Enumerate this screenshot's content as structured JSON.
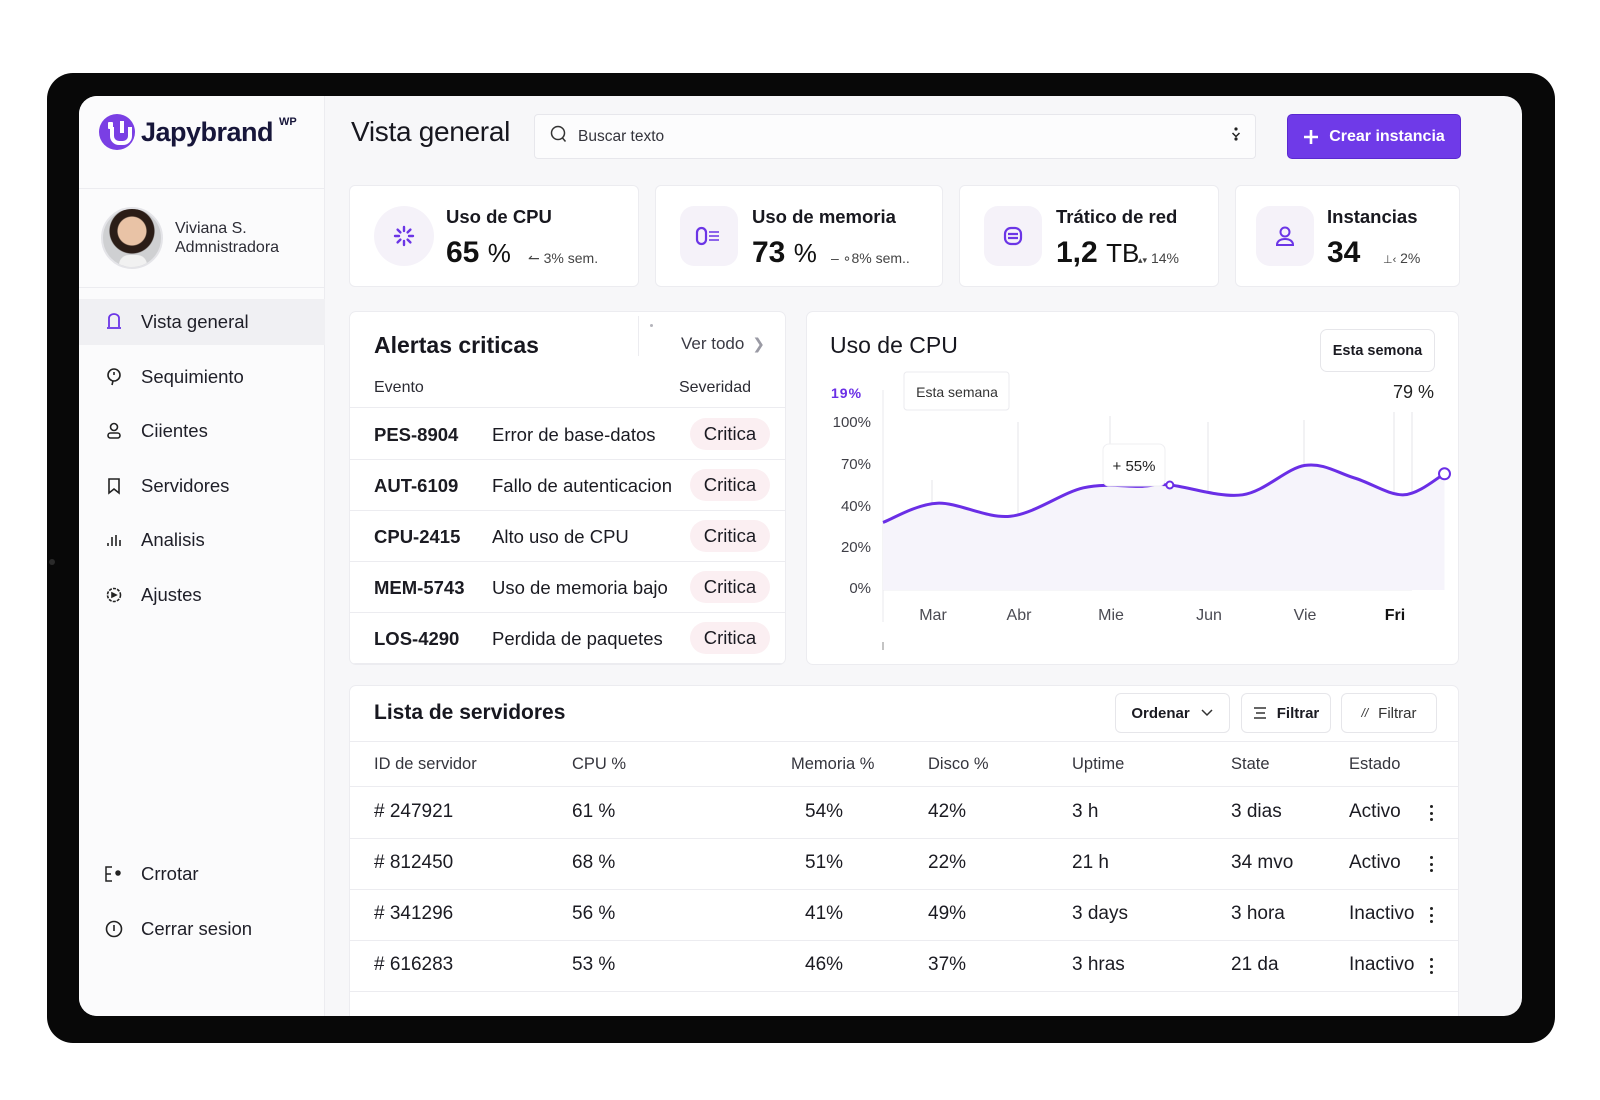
{
  "brand": {
    "name": "Japybrand",
    "superscript": "WP",
    "accent_color": "#6f3ae8"
  },
  "user": {
    "name": "Viviana S.",
    "role": "Admnistradora"
  },
  "sidebar": {
    "items": [
      {
        "label": "Vista general",
        "icon": "bell-icon",
        "active": true
      },
      {
        "label": "Sequimiento",
        "icon": "location-pin-icon",
        "active": false
      },
      {
        "label": "Ciientes",
        "icon": "user-icon",
        "active": false
      },
      {
        "label": "Servidores",
        "icon": "bookmark-icon",
        "active": false
      },
      {
        "label": "Analisis",
        "icon": "bar-chart-icon",
        "active": false
      },
      {
        "label": "Ajustes",
        "icon": "settings-icon",
        "active": false
      }
    ],
    "bottom_items": [
      {
        "label": "Crrotar",
        "icon": "export-icon"
      },
      {
        "label": "Cerrar sesion",
        "icon": "info-circle-icon"
      }
    ]
  },
  "header": {
    "title": "Vista general",
    "search_placeholder": "Buscar texto",
    "create_button": "Crear instancia"
  },
  "stats": [
    {
      "label": "Uso de CPU",
      "value": "65",
      "unit": "%",
      "delta": "3% sem.",
      "delta_icon": "↼",
      "icon": "spinner-icon"
    },
    {
      "label": "Uso de memoria",
      "value": "73",
      "unit": "%",
      "delta": "8% sem..",
      "delta_icon": "– ∘",
      "icon": "memory-icon"
    },
    {
      "label": "Trático de red",
      "value": "1,2",
      "unit": "TB",
      "delta": "14%",
      "delta_icon": "▴▾",
      "icon": "database-icon"
    },
    {
      "label": "Instancias",
      "value": "34",
      "unit": "",
      "delta": "2%",
      "delta_icon": "⊥‹",
      "icon": "user-icon"
    }
  ],
  "alerts": {
    "title": "Alertas criticas",
    "view_all": "Ver todo",
    "columns": [
      "Evento",
      "Severidad"
    ],
    "rows": [
      {
        "code": "PES-8904",
        "description": "Error de base-datos",
        "severity": "Critica"
      },
      {
        "code": "AUT-6109",
        "description": "Fallo de autenticacion",
        "severity": "Critica"
      },
      {
        "code": "CPU-2415",
        "description": "Alto uso de CPU",
        "severity": "Critica"
      },
      {
        "code": "MEM-5743",
        "description": "Uso de memoria bajo",
        "severity": "Critica"
      },
      {
        "code": "LOS-4290",
        "description": "Perdida de paquetes",
        "severity": "Critica"
      }
    ],
    "badge_color": "#fbeff2"
  },
  "cpu_chart": {
    "title": "Uso de CPU",
    "period_button": "Esta semona",
    "legend_label": "Esta semana",
    "low_label": "19%",
    "high_label": "79 %",
    "tooltip": "55%",
    "line_color": "#6a2ee6"
  },
  "chart_data": {
    "type": "line",
    "title": "Uso de CPU",
    "x": [
      "Mar",
      "Abr",
      "Mie",
      "Jun",
      "Vie",
      "Fri"
    ],
    "y_ticks": [
      "100%",
      "70%",
      "40%",
      "20%",
      "0%"
    ],
    "ylim": [
      0,
      100
    ],
    "series": [
      {
        "name": "Esta semana",
        "points": [
          {
            "x": -0.55,
            "y": 32
          },
          {
            "x": 0.05,
            "y": 42
          },
          {
            "x": 0.9,
            "y": 35
          },
          {
            "x": 1.7,
            "y": 53
          },
          {
            "x": 2.3,
            "y": 54
          },
          {
            "x": 2.6,
            "y": 55
          },
          {
            "x": 3.35,
            "y": 48
          },
          {
            "x": 4.0,
            "y": 69
          },
          {
            "x": 4.55,
            "y": 60
          },
          {
            "x": 5.1,
            "y": 48
          },
          {
            "x": 5.55,
            "y": 63
          }
        ]
      }
    ],
    "highlight_points": [
      {
        "x": 2.6,
        "y": 55,
        "label": "55%"
      },
      {
        "x": 5.55,
        "y": 63
      }
    ],
    "grid": "vertical",
    "xlabel": "",
    "ylabel": ""
  },
  "servers": {
    "title": "Lista de servidores",
    "buttons": {
      "sort": "Ordenar",
      "filter": "Filtrar",
      "filter2": "Filtrar"
    },
    "columns": [
      "ID de servidor",
      "CPU %",
      "Memoria %",
      "Disco %",
      "Uptime",
      "State",
      "Estado"
    ],
    "rows": [
      {
        "id": "# 247921",
        "cpu": "61 %",
        "mem": "54%",
        "disk": "42%",
        "uptime": "3 h",
        "state": "3 dias",
        "status": "Activo"
      },
      {
        "id": "# 812450",
        "cpu": "68 %",
        "mem": "51%",
        "disk": "22%",
        "uptime": "21 h",
        "state": "34 mvo",
        "status": "Activo"
      },
      {
        "id": "# 341296",
        "cpu": "56 %",
        "mem": "41%",
        "disk": "49%",
        "uptime": "3 days",
        "state": "3 hora",
        "status": "Inactivo"
      },
      {
        "id": "# 616283",
        "cpu": "53 %",
        "mem": "46%",
        "disk": "37%",
        "uptime": "3 hras",
        "state": "21 da",
        "status": "Inactivo"
      }
    ]
  }
}
